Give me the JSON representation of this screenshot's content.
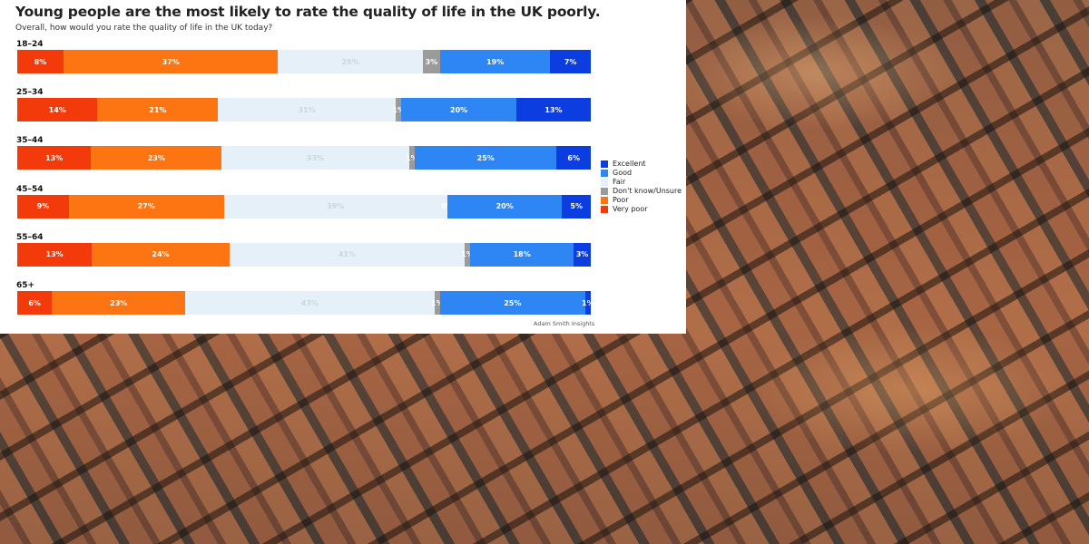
{
  "chart_data": {
    "type": "bar",
    "orientation": "horizontal",
    "stacked": true,
    "title": "Young people are the most likely to rate the quality of life in the UK poorly.",
    "subtitle": "Overall, how would you rate the quality of life in the UK today?",
    "categories": [
      "18–24",
      "25–34",
      "35–44",
      "45–54",
      "55–64",
      "65+"
    ],
    "series": [
      {
        "name": "Very poor",
        "color": "#f23a0a",
        "values": [
          8,
          14,
          13,
          9,
          13,
          6
        ]
      },
      {
        "name": "Poor",
        "color": "#fd7412",
        "values": [
          37,
          21,
          23,
          27,
          24,
          23
        ]
      },
      {
        "name": "Fair",
        "color": "#e6f0f9",
        "values": [
          25,
          31,
          33,
          39,
          41,
          43
        ]
      },
      {
        "name": "Don't know/Unsure",
        "color": "#9b9b9b",
        "values": [
          3,
          1,
          1,
          0,
          1,
          1
        ]
      },
      {
        "name": "Good",
        "color": "#2e86f4",
        "values": [
          19,
          20,
          25,
          20,
          18,
          25
        ]
      },
      {
        "name": "Excellent",
        "color": "#0b3de0",
        "values": [
          7,
          13,
          6,
          5,
          3,
          1
        ]
      }
    ],
    "data_labels": [
      [
        "8%",
        "37%",
        "25%",
        "3%",
        "19%",
        "7%"
      ],
      [
        "14%",
        "21%",
        "31%",
        "1%",
        "20%",
        "13%"
      ],
      [
        "13%",
        "23%",
        "33%",
        "1%",
        "25%",
        "6%"
      ],
      [
        "9%",
        "27%",
        "39%",
        "0%",
        "20%",
        "5%"
      ],
      [
        "13%",
        "24%",
        "41%",
        "1%",
        "18%",
        "3%"
      ],
      [
        "6%",
        "23%",
        "43%",
        "1%",
        "25%",
        "1%"
      ]
    ],
    "legend": {
      "position": "right",
      "order": [
        "Excellent",
        "Good",
        "Fair",
        "Don't know/Unsure",
        "Poor",
        "Very poor"
      ]
    },
    "grid": false,
    "source": "Adam Smith Insights"
  },
  "background": {
    "description_icon": "aerial-houses-photo"
  }
}
